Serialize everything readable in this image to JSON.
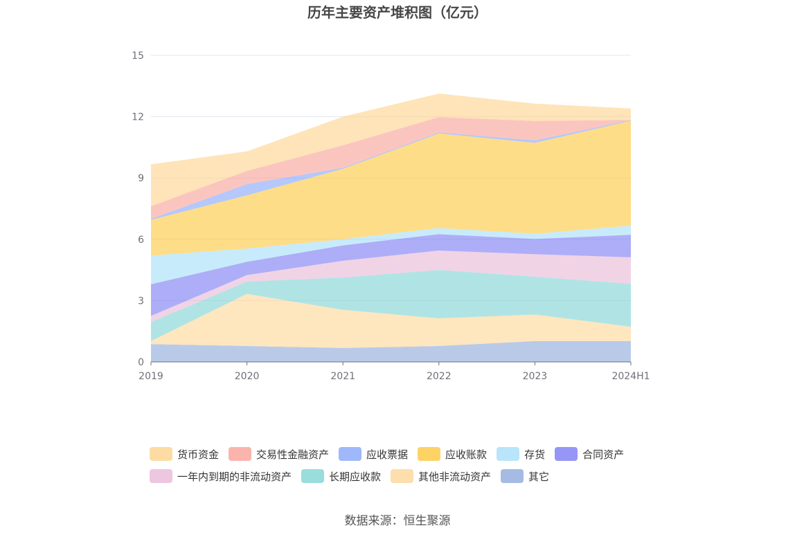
{
  "title": "历年主要资产堆积图（亿元）",
  "source": "数据来源：恒生聚源",
  "chart_data": {
    "type": "area",
    "stacked": true,
    "categories": [
      "2019",
      "2020",
      "2021",
      "2022",
      "2023",
      "2024H1"
    ],
    "ylim": [
      0,
      15
    ],
    "yticks": [
      0,
      3,
      6,
      9,
      12,
      15
    ],
    "grid": true,
    "legend_position": "bottom",
    "series": [
      {
        "name": "其它",
        "color": "#8eaadc",
        "values": [
          0.87,
          0.78,
          0.68,
          0.78,
          1.02,
          1.02
        ]
      },
      {
        "name": "其他非流动资产",
        "color": "#fdd697",
        "values": [
          0.15,
          2.55,
          1.87,
          1.35,
          1.3,
          0.7
        ]
      },
      {
        "name": "长期应收款",
        "color": "#7fd4d4",
        "values": [
          0.93,
          0.6,
          1.58,
          2.37,
          1.85,
          2.1
        ]
      },
      {
        "name": "一年内到期的非流动资产",
        "color": "#e9b8d7",
        "values": [
          0.3,
          0.32,
          0.82,
          0.95,
          1.1,
          1.3
        ]
      },
      {
        "name": "合同资产",
        "color": "#7b7cf2",
        "values": [
          1.55,
          0.65,
          0.75,
          0.8,
          0.75,
          1.1
        ]
      },
      {
        "name": "存货",
        "color": "#a6def9",
        "values": [
          1.4,
          0.65,
          0.3,
          0.3,
          0.25,
          0.45
        ]
      },
      {
        "name": "应收账款",
        "color": "#fdc840",
        "values": [
          1.75,
          2.6,
          3.45,
          4.63,
          4.45,
          5.13
        ]
      },
      {
        "name": "应收票据",
        "color": "#86a6fa",
        "values": [
          0.05,
          0.55,
          0.05,
          0.05,
          0.12,
          0.03
        ]
      },
      {
        "name": "交易性金融资产",
        "color": "#f9a197",
        "values": [
          0.62,
          0.65,
          1.1,
          0.75,
          0.95,
          0.01
        ]
      },
      {
        "name": "货币资金",
        "color": "#fdd38c",
        "values": [
          2.05,
          0.95,
          1.4,
          1.15,
          0.85,
          0.56
        ]
      }
    ]
  },
  "legend": {
    "row1": [
      {
        "label": "货币资金",
        "color": "#fdd38c"
      },
      {
        "label": "交易性金融资产",
        "color": "#f9a197"
      },
      {
        "label": "应收票据",
        "color": "#86a6fa"
      },
      {
        "label": "应收账款",
        "color": "#fdc840"
      },
      {
        "label": "存货",
        "color": "#a6def9"
      },
      {
        "label": "合同资产",
        "color": "#7b7cf2"
      }
    ],
    "row2": [
      {
        "label": "一年内到期的非流动资产",
        "color": "#e9b8d7"
      },
      {
        "label": "长期应收款",
        "color": "#7fd4d4"
      },
      {
        "label": "其他非流动资产",
        "color": "#fdd697"
      },
      {
        "label": "其它",
        "color": "#8eaadc"
      }
    ]
  }
}
